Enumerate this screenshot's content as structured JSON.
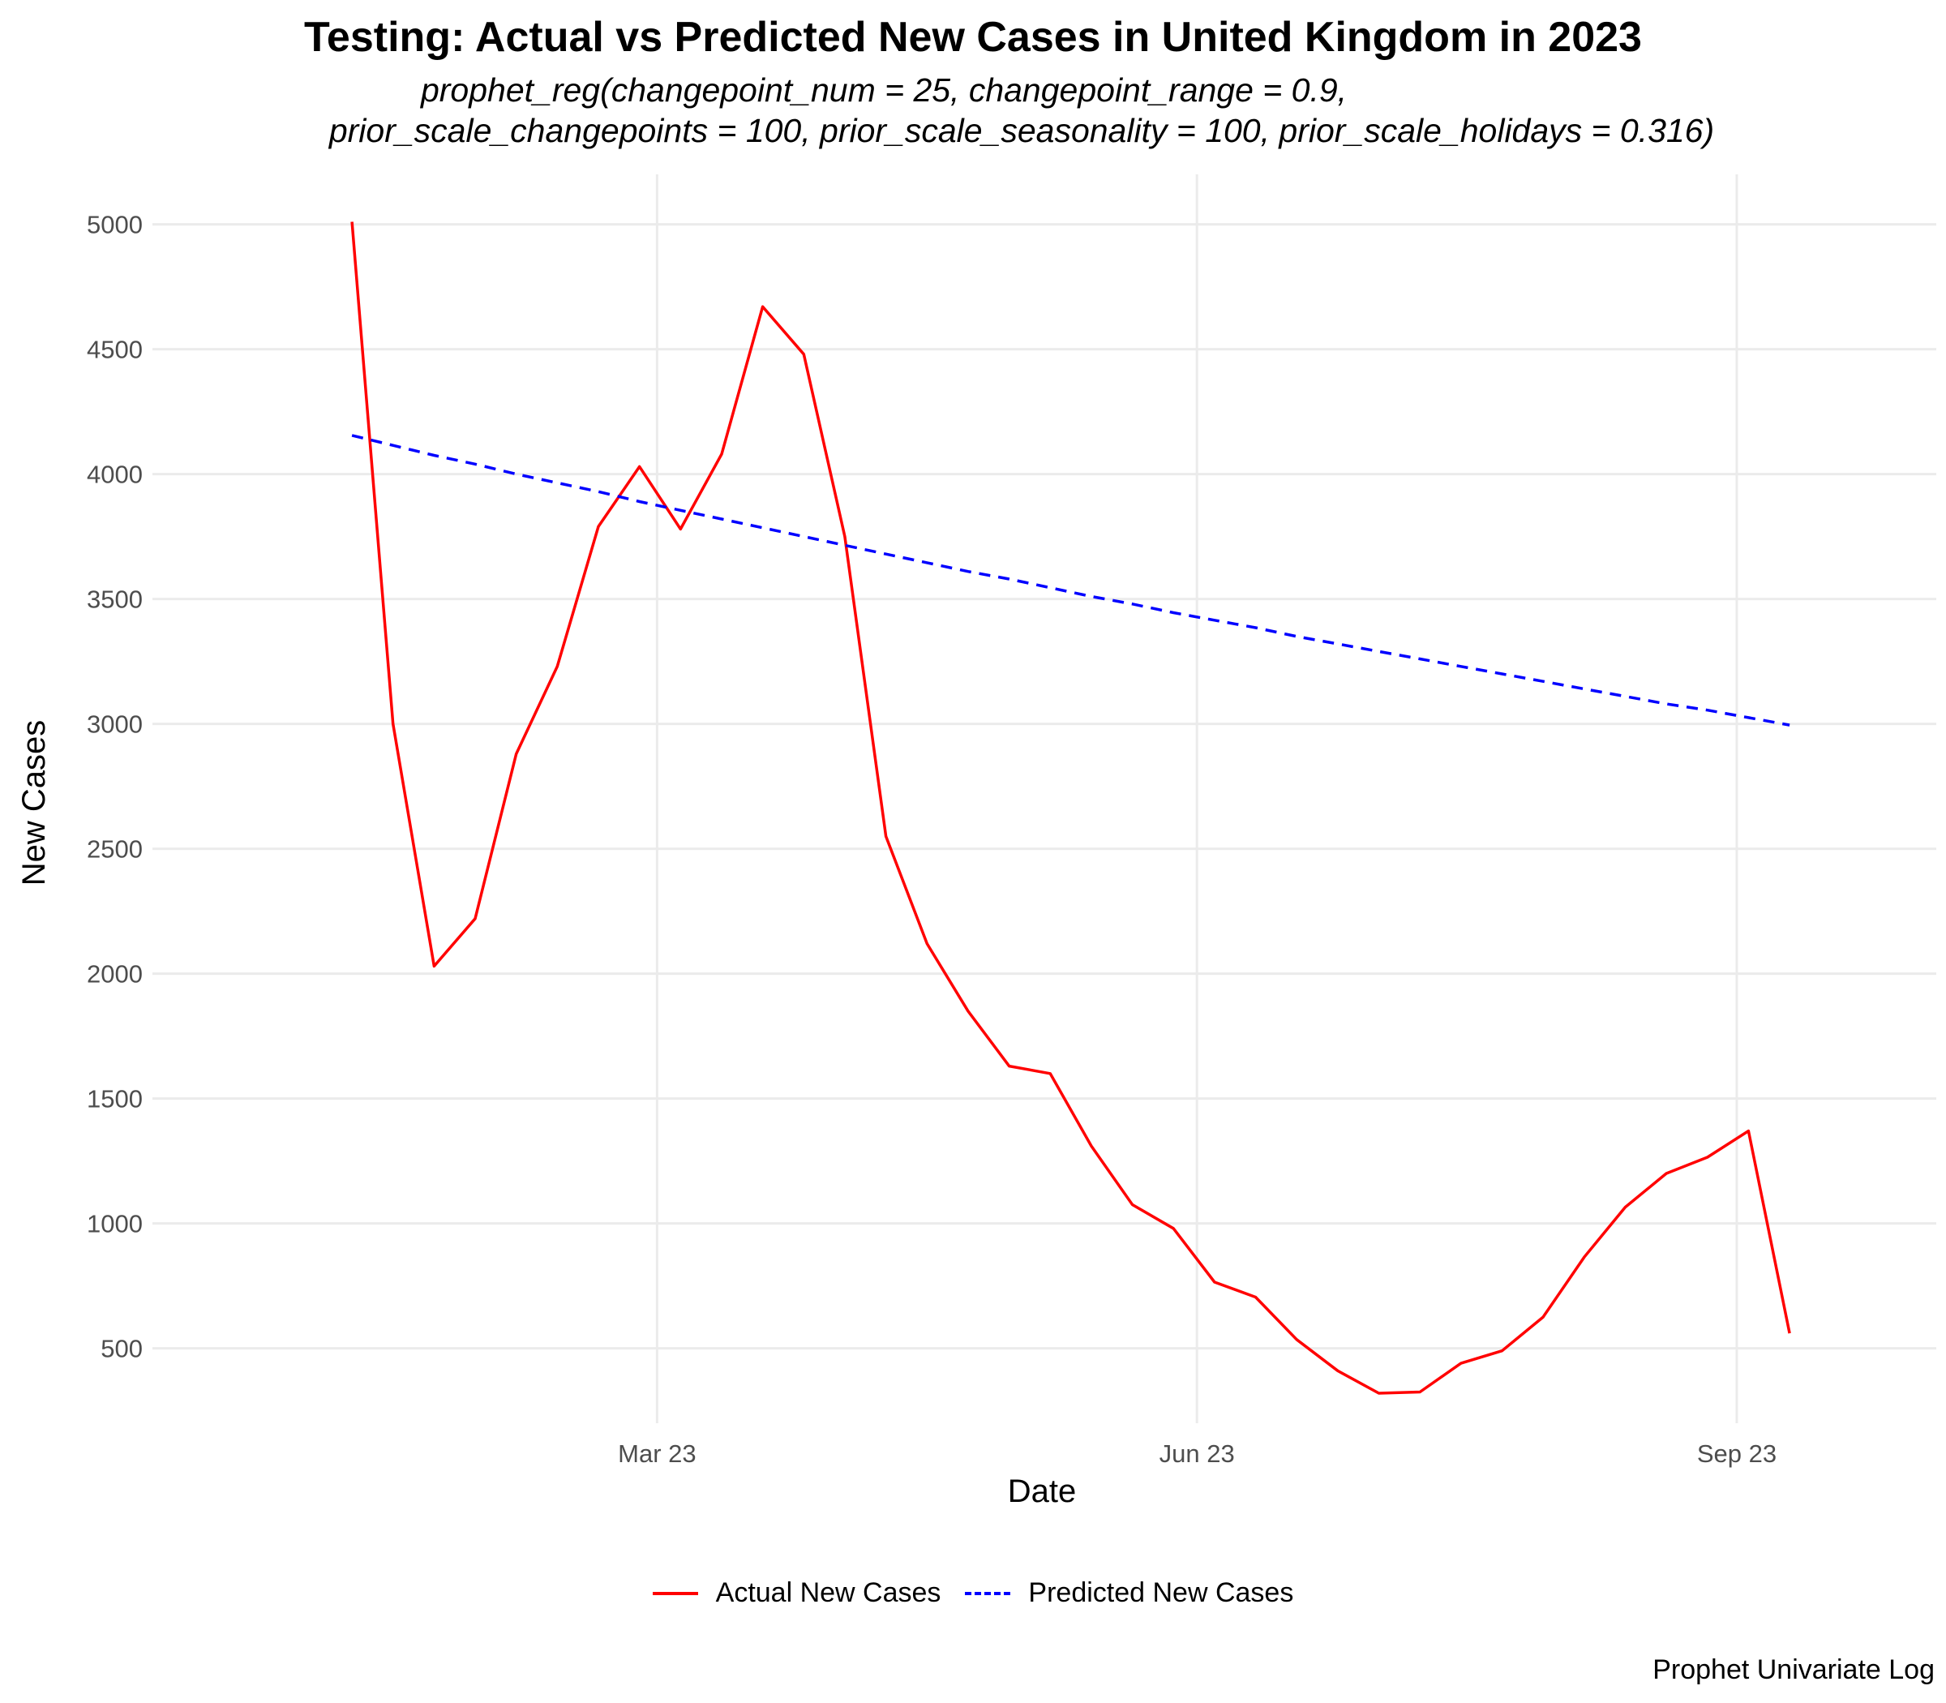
{
  "chart_data": {
    "type": "line",
    "title": "Testing: Actual vs Predicted New Cases in United Kingdom in 2023",
    "subtitle_line1": "prophet_reg(changepoint_num = 25, changepoint_range = 0.9,",
    "subtitle_line2": "prior_scale_changepoints = 100, prior_scale_seasonality = 100, prior_scale_holidays = 0.316)",
    "xlabel": "Date",
    "ylabel": "New Cases",
    "caption": "Prophet Univariate Log",
    "x_ticks": [
      {
        "date": "2023-03-01",
        "label": "Mar 23"
      },
      {
        "date": "2023-06-01",
        "label": "Jun 23"
      },
      {
        "date": "2023-09-01",
        "label": "Sep 23"
      }
    ],
    "y_ticks": [
      500,
      1000,
      1500,
      2000,
      2500,
      3000,
      3500,
      4000,
      4500,
      5000
    ],
    "xlim": [
      "2022-12-05",
      "2023-10-05"
    ],
    "ylim": [
      200,
      5200
    ],
    "grid": true,
    "legend_position": "bottom",
    "x": [
      "2023-01-08",
      "2023-01-15",
      "2023-01-22",
      "2023-01-29",
      "2023-02-05",
      "2023-02-12",
      "2023-02-19",
      "2023-02-26",
      "2023-03-05",
      "2023-03-12",
      "2023-03-19",
      "2023-03-26",
      "2023-04-02",
      "2023-04-09",
      "2023-04-16",
      "2023-04-23",
      "2023-04-30",
      "2023-05-07",
      "2023-05-14",
      "2023-05-21",
      "2023-05-28",
      "2023-06-04",
      "2023-06-11",
      "2023-06-18",
      "2023-06-25",
      "2023-07-02",
      "2023-07-09",
      "2023-07-16",
      "2023-07-23",
      "2023-07-30",
      "2023-08-06",
      "2023-08-13",
      "2023-08-20",
      "2023-08-27",
      "2023-09-03",
      "2023-09-10"
    ],
    "series": [
      {
        "name": "Actual New Cases",
        "color": "#ff0000",
        "dash": "solid",
        "values": [
          5010,
          3000,
          2030,
          2220,
          2880,
          3230,
          3790,
          4030,
          3780,
          4080,
          4670,
          4480,
          3750,
          2550,
          2120,
          1850,
          1630,
          1600,
          1310,
          1075,
          980,
          765,
          705,
          535,
          410,
          320,
          325,
          440,
          490,
          625,
          865,
          1065,
          1200,
          1265,
          1370,
          560
        ]
      },
      {
        "name": "Predicted New Cases",
        "color": "#0000ff",
        "dash": "dashed",
        "values": [
          4155,
          4115,
          4075,
          4040,
          4000,
          3965,
          3930,
          3890,
          3855,
          3820,
          3785,
          3750,
          3715,
          3680,
          3645,
          3610,
          3580,
          3545,
          3510,
          3480,
          3445,
          3415,
          3385,
          3350,
          3320,
          3290,
          3260,
          3230,
          3200,
          3170,
          3140,
          3110,
          3080,
          3055,
          3025,
          2995
        ]
      }
    ]
  }
}
